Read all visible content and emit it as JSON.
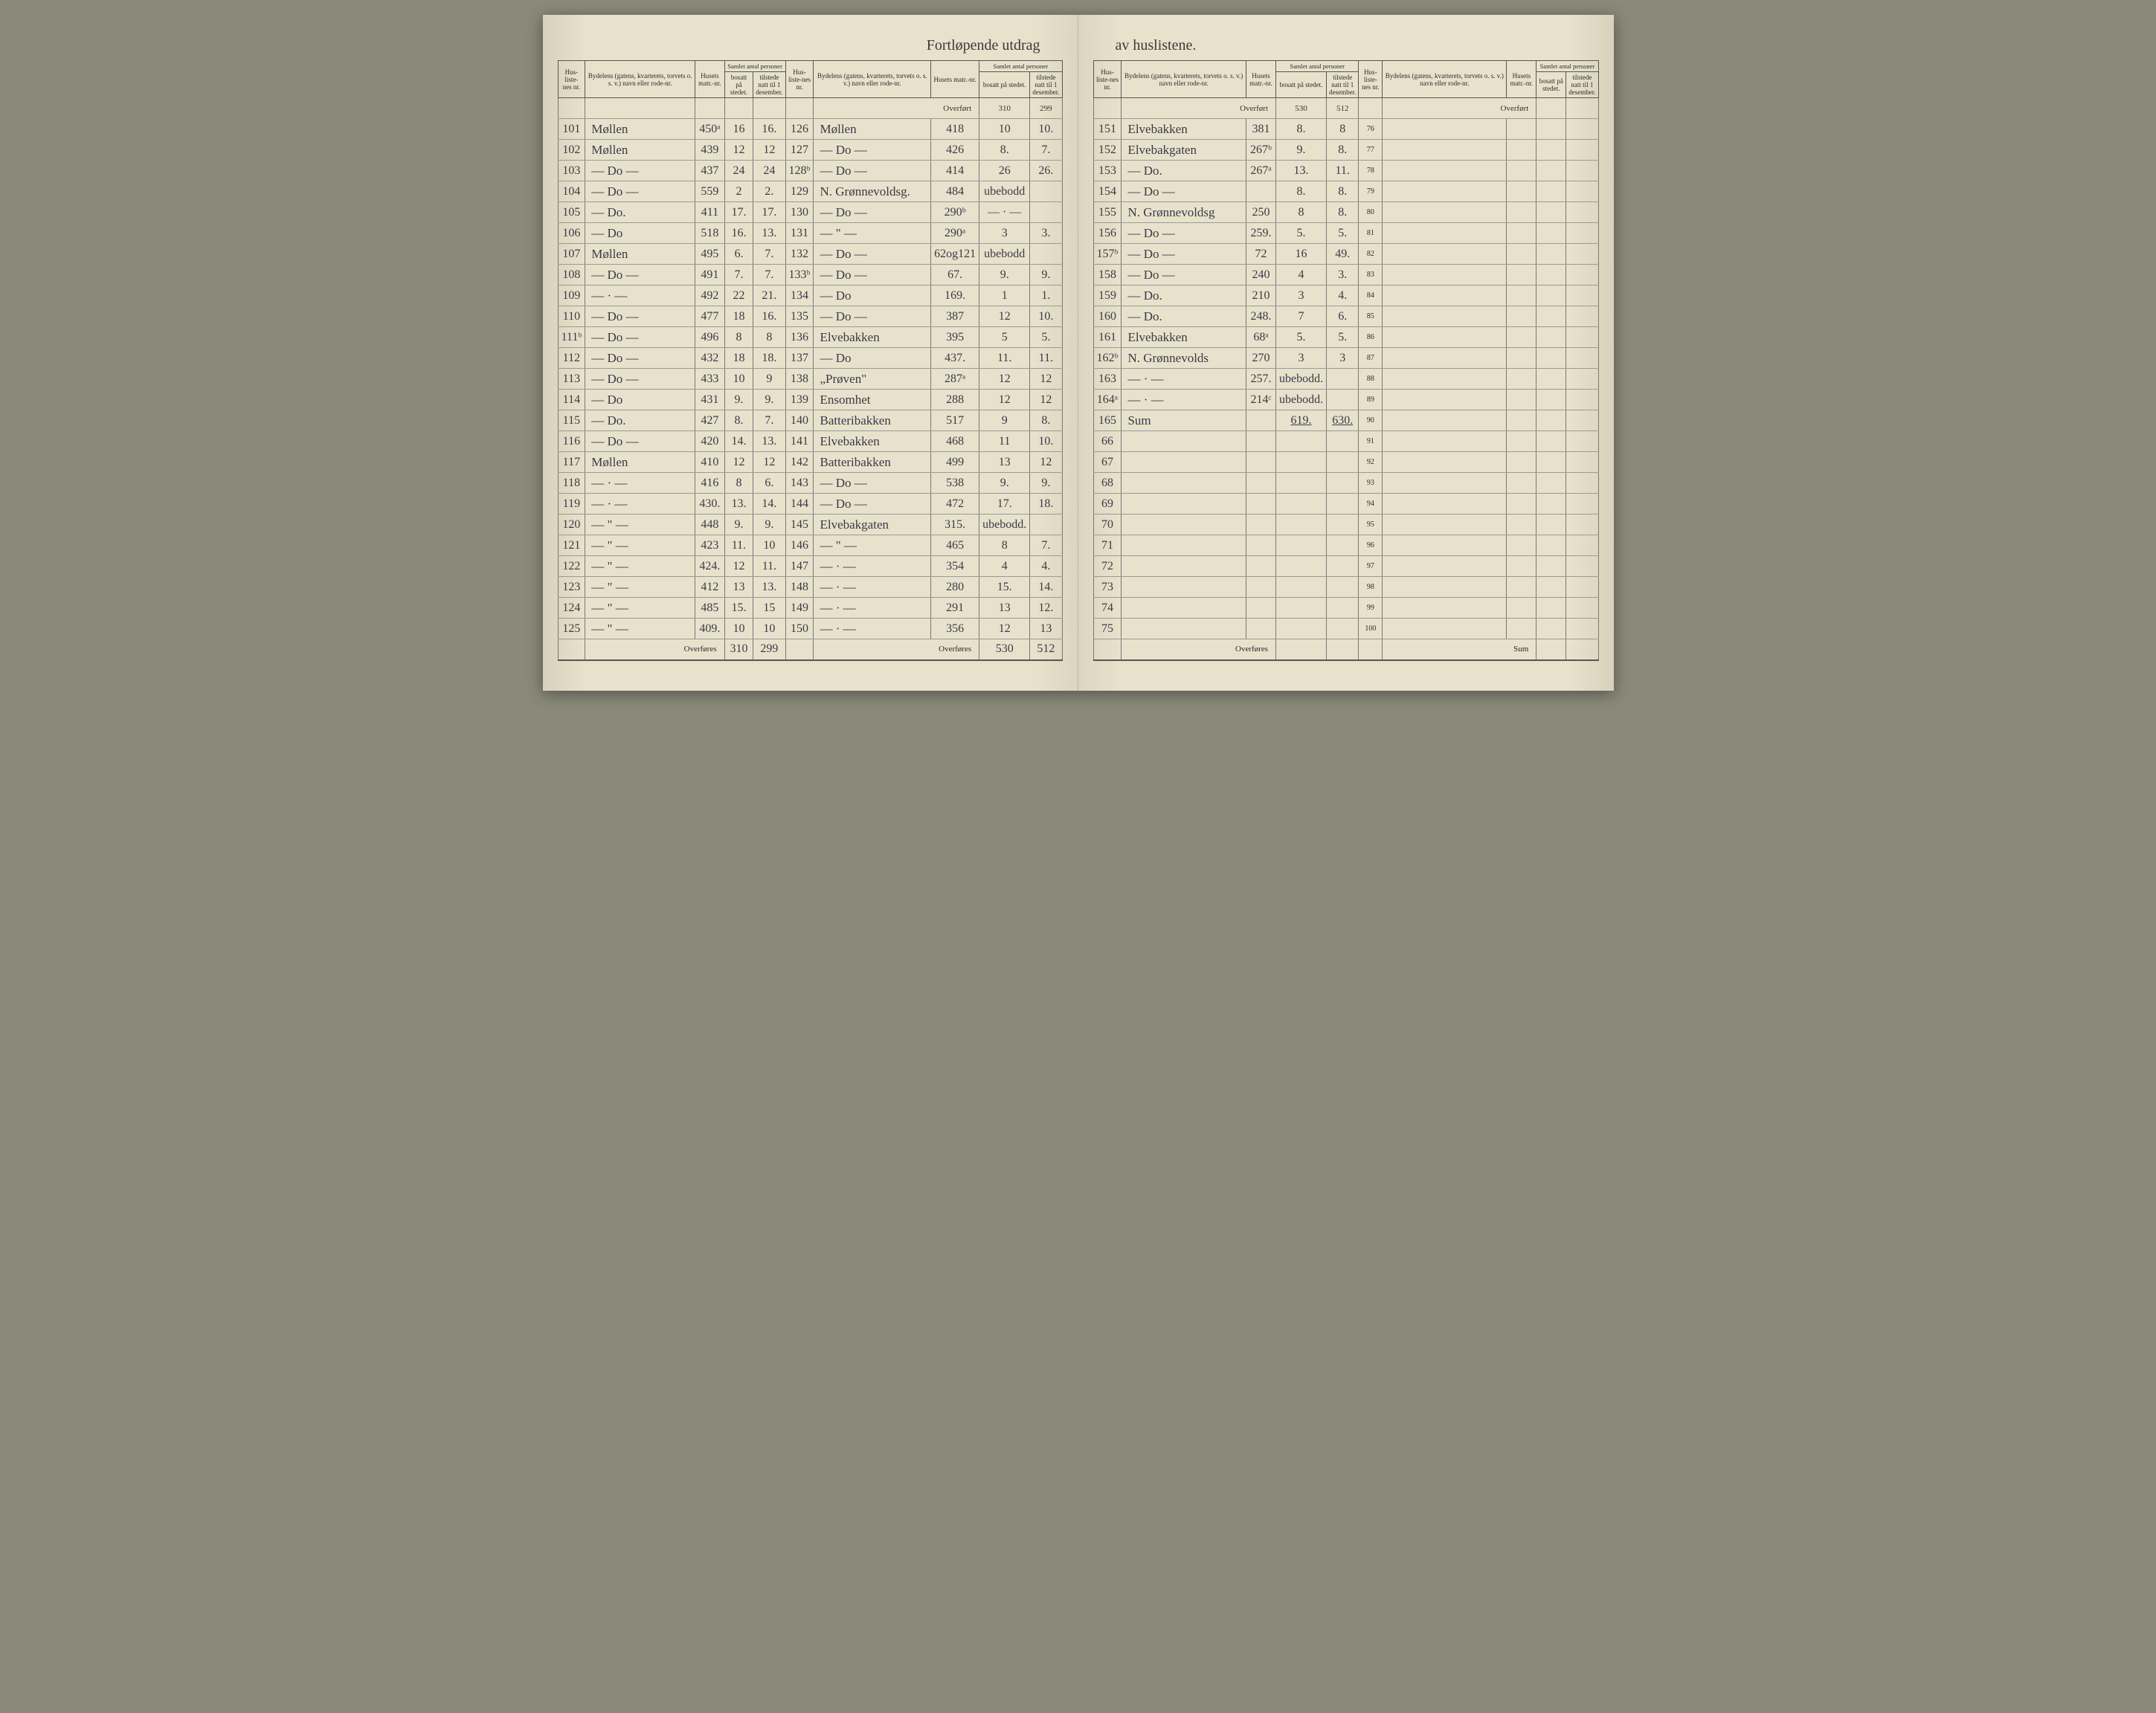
{
  "title_left": "Fortløpende utdrag",
  "title_right": "av huslistene.",
  "headers": {
    "hus_nr": "Hus-liste-nes nr.",
    "bydel": "Bydelens (gatens, kvarterets, torvets o. s. v.) navn eller rode-nr.",
    "matr": "Husets matr.-nr.",
    "samlet": "Samlet antal personer",
    "bosatt": "bosatt på stedet.",
    "tilstede": "tilstede natt til 1 desember."
  },
  "overfort": "Overført",
  "overfores": "Overføres",
  "sum": "Sum",
  "left_block1": [
    {
      "nr": "101",
      "name": "Møllen",
      "matr": "450ᵃ",
      "bo": "16",
      "ti": "16."
    },
    {
      "nr": "102",
      "name": "Møllen",
      "matr": "439",
      "bo": "12",
      "ti": "12"
    },
    {
      "nr": "103",
      "name": "— Do —",
      "matr": "437",
      "bo": "24",
      "ti": "24"
    },
    {
      "nr": "104",
      "name": "— Do —",
      "matr": "559",
      "bo": "2",
      "ti": "2."
    },
    {
      "nr": "105",
      "name": "— Do.",
      "matr": "411",
      "bo": "17.",
      "ti": "17."
    },
    {
      "nr": "106",
      "name": "— Do",
      "matr": "518",
      "bo": "16.",
      "ti": "13."
    },
    {
      "nr": "107",
      "name": "Møllen",
      "matr": "495",
      "bo": "6.",
      "ti": "7."
    },
    {
      "nr": "108",
      "name": "— Do —",
      "matr": "491",
      "bo": "7.",
      "ti": "7."
    },
    {
      "nr": "109",
      "name": "— · —",
      "matr": "492",
      "bo": "22",
      "ti": "21."
    },
    {
      "nr": "110",
      "name": "— Do —",
      "matr": "477",
      "bo": "18",
      "ti": "16."
    },
    {
      "nr": "111ᵇ",
      "name": "— Do —",
      "matr": "496",
      "bo": "8",
      "ti": "8"
    },
    {
      "nr": "112",
      "name": "— Do —",
      "matr": "432",
      "bo": "18",
      "ti": "18."
    },
    {
      "nr": "113",
      "name": "— Do —",
      "matr": "433",
      "bo": "10",
      "ti": "9"
    },
    {
      "nr": "114",
      "name": "— Do",
      "matr": "431",
      "bo": "9.",
      "ti": "9."
    },
    {
      "nr": "115",
      "name": "— Do.",
      "matr": "427",
      "bo": "8.",
      "ti": "7."
    },
    {
      "nr": "116",
      "name": "— Do —",
      "matr": "420",
      "bo": "14.",
      "ti": "13."
    },
    {
      "nr": "117",
      "name": "Møllen",
      "matr": "410",
      "bo": "12",
      "ti": "12"
    },
    {
      "nr": "118",
      "name": "— · —",
      "matr": "416",
      "bo": "8",
      "ti": "6."
    },
    {
      "nr": "119",
      "name": "— · —",
      "matr": "430.",
      "bo": "13.",
      "ti": "14."
    },
    {
      "nr": "120",
      "name": "— \" —",
      "matr": "448",
      "bo": "9.",
      "ti": "9."
    },
    {
      "nr": "121",
      "name": "— \" —",
      "matr": "423",
      "bo": "11.",
      "ti": "10"
    },
    {
      "nr": "122",
      "name": "— \" —",
      "matr": "424.",
      "bo": "12",
      "ti": "11."
    },
    {
      "nr": "123",
      "name": "— \" —",
      "matr": "412",
      "bo": "13",
      "ti": "13."
    },
    {
      "nr": "124",
      "name": "— \" —",
      "matr": "485",
      "bo": "15.",
      "ti": "15"
    },
    {
      "nr": "125",
      "name": "— \" —",
      "matr": "409.",
      "bo": "10",
      "ti": "10"
    }
  ],
  "left_block1_sum": {
    "bo": "310",
    "ti": "299"
  },
  "left_block2_overf": {
    "bo": "310",
    "ti": "299"
  },
  "left_block2": [
    {
      "nr": "126",
      "name": "Møllen",
      "matr": "418",
      "bo": "10",
      "ti": "10."
    },
    {
      "nr": "127",
      "name": "— Do —",
      "matr": "426",
      "bo": "8.",
      "ti": "7."
    },
    {
      "nr": "128ᵇ",
      "name": "— Do —",
      "matr": "414",
      "bo": "26",
      "ti": "26."
    },
    {
      "nr": "129",
      "name": "N. Grønnevoldsg.",
      "matr": "484",
      "bo": "ubebodd",
      "ti": ""
    },
    {
      "nr": "130",
      "name": "— Do —",
      "matr": "290ᵇ",
      "bo": "— · —",
      "ti": ""
    },
    {
      "nr": "131",
      "name": "— \" —",
      "matr": "290ᵃ",
      "bo": "3",
      "ti": "3."
    },
    {
      "nr": "132",
      "name": "— Do —",
      "matr": "62og121",
      "bo": "ubebodd",
      "ti": ""
    },
    {
      "nr": "133ᵇ",
      "name": "— Do —",
      "matr": "67.",
      "bo": "9.",
      "ti": "9."
    },
    {
      "nr": "134",
      "name": "— Do",
      "matr": "169.",
      "bo": "1",
      "ti": "1."
    },
    {
      "nr": "135",
      "name": "— Do —",
      "matr": "387",
      "bo": "12",
      "ti": "10."
    },
    {
      "nr": "136",
      "name": "Elvebakken",
      "matr": "395",
      "bo": "5",
      "ti": "5."
    },
    {
      "nr": "137",
      "name": "— Do",
      "matr": "437.",
      "bo": "11.",
      "ti": "11."
    },
    {
      "nr": "138",
      "name": "„Prøven\"",
      "matr": "287ᵃ",
      "bo": "12",
      "ti": "12"
    },
    {
      "nr": "139",
      "name": "Ensomhet",
      "matr": "288",
      "bo": "12",
      "ti": "12"
    },
    {
      "nr": "140",
      "name": "Batteribakken",
      "matr": "517",
      "bo": "9",
      "ti": "8."
    },
    {
      "nr": "141",
      "name": "Elvebakken",
      "matr": "468",
      "bo": "11",
      "ti": "10."
    },
    {
      "nr": "142",
      "name": "Batteribakken",
      "matr": "499",
      "bo": "13",
      "ti": "12"
    },
    {
      "nr": "143",
      "name": "— Do —",
      "matr": "538",
      "bo": "9.",
      "ti": "9."
    },
    {
      "nr": "144",
      "name": "— Do —",
      "matr": "472",
      "bo": "17.",
      "ti": "18."
    },
    {
      "nr": "145",
      "name": "Elvebakgaten",
      "matr": "315.",
      "bo": "ubebodd.",
      "ti": ""
    },
    {
      "nr": "146",
      "name": "— \" —",
      "matr": "465",
      "bo": "8",
      "ti": "7."
    },
    {
      "nr": "147",
      "name": "— · —",
      "matr": "354",
      "bo": "4",
      "ti": "4."
    },
    {
      "nr": "148",
      "name": "— · —",
      "matr": "280",
      "bo": "15.",
      "ti": "14."
    },
    {
      "nr": "149",
      "name": "— · —",
      "matr": "291",
      "bo": "13",
      "ti": "12."
    },
    {
      "nr": "150",
      "name": "— · —",
      "matr": "356",
      "bo": "12",
      "ti": "13"
    }
  ],
  "left_block2_sum": {
    "bo": "530",
    "ti": "512"
  },
  "right_block1_overf": {
    "bo": "530",
    "ti": "512"
  },
  "right_block1": [
    {
      "nr": "151",
      "name": "Elvebakken",
      "matr": "381",
      "bo": "8.",
      "ti": "8"
    },
    {
      "nr": "152",
      "name": "Elvebakgaten",
      "matr": "267ᵇ",
      "bo": "9.",
      "ti": "8."
    },
    {
      "nr": "153",
      "name": "— Do.",
      "matr": "267ᵃ",
      "bo": "13.",
      "ti": "11."
    },
    {
      "nr": "154",
      "name": "— Do —",
      "matr": "",
      "bo": "8.",
      "ti": "8."
    },
    {
      "nr": "155",
      "name": "N. Grønnevoldsg",
      "matr": "250",
      "bo": "8",
      "ti": "8."
    },
    {
      "nr": "156",
      "name": "— Do —",
      "matr": "259.",
      "bo": "5.",
      "ti": "5."
    },
    {
      "nr": "157ᵇ",
      "name": "— Do —",
      "matr": "72",
      "bo": "16",
      "ti": "49."
    },
    {
      "nr": "158",
      "name": "— Do —",
      "matr": "240",
      "bo": "4",
      "ti": "3."
    },
    {
      "nr": "159",
      "name": "— Do.",
      "matr": "210",
      "bo": "3",
      "ti": "4."
    },
    {
      "nr": "160",
      "name": "— Do.",
      "matr": "248.",
      "bo": "7",
      "ti": "6."
    },
    {
      "nr": "161",
      "name": "Elvebakken",
      "matr": "68ᵃ",
      "bo": "5.",
      "ti": "5."
    },
    {
      "nr": "162ᵇ",
      "name": "N. Grønnevolds",
      "matr": "270",
      "bo": "3",
      "ti": "3"
    },
    {
      "nr": "163",
      "name": "— · —",
      "matr": "257.",
      "bo": "ubebodd.",
      "ti": ""
    },
    {
      "nr": "164ᵃ",
      "name": "— · —",
      "matr": "214ᶜ",
      "bo": "ubebodd.",
      "ti": ""
    },
    {
      "nr": "165",
      "name": "Sum",
      "matr": "",
      "bo": "619.",
      "ti": "630."
    },
    {
      "nr": "66",
      "name": "",
      "matr": "",
      "bo": "",
      "ti": ""
    },
    {
      "nr": "67",
      "name": "",
      "matr": "",
      "bo": "",
      "ti": ""
    },
    {
      "nr": "68",
      "name": "",
      "matr": "",
      "bo": "",
      "ti": ""
    },
    {
      "nr": "69",
      "name": "",
      "matr": "",
      "bo": "",
      "ti": ""
    },
    {
      "nr": "70",
      "name": "",
      "matr": "",
      "bo": "",
      "ti": ""
    },
    {
      "nr": "71",
      "name": "",
      "matr": "",
      "bo": "",
      "ti": ""
    },
    {
      "nr": "72",
      "name": "",
      "matr": "",
      "bo": "",
      "ti": ""
    },
    {
      "nr": "73",
      "name": "",
      "matr": "",
      "bo": "",
      "ti": ""
    },
    {
      "nr": "74",
      "name": "",
      "matr": "",
      "bo": "",
      "ti": ""
    },
    {
      "nr": "75",
      "name": "",
      "matr": "",
      "bo": "",
      "ti": ""
    }
  ],
  "right_block2": [
    {
      "nr": "76"
    },
    {
      "nr": "77"
    },
    {
      "nr": "78"
    },
    {
      "nr": "79"
    },
    {
      "nr": "80"
    },
    {
      "nr": "81"
    },
    {
      "nr": "82"
    },
    {
      "nr": "83"
    },
    {
      "nr": "84"
    },
    {
      "nr": "85"
    },
    {
      "nr": "86"
    },
    {
      "nr": "87"
    },
    {
      "nr": "88"
    },
    {
      "nr": "89"
    },
    {
      "nr": "90"
    },
    {
      "nr": "91"
    },
    {
      "nr": "92"
    },
    {
      "nr": "93"
    },
    {
      "nr": "94"
    },
    {
      "nr": "95"
    },
    {
      "nr": "96"
    },
    {
      "nr": "97"
    },
    {
      "nr": "98"
    },
    {
      "nr": "99"
    },
    {
      "nr": "100"
    }
  ]
}
